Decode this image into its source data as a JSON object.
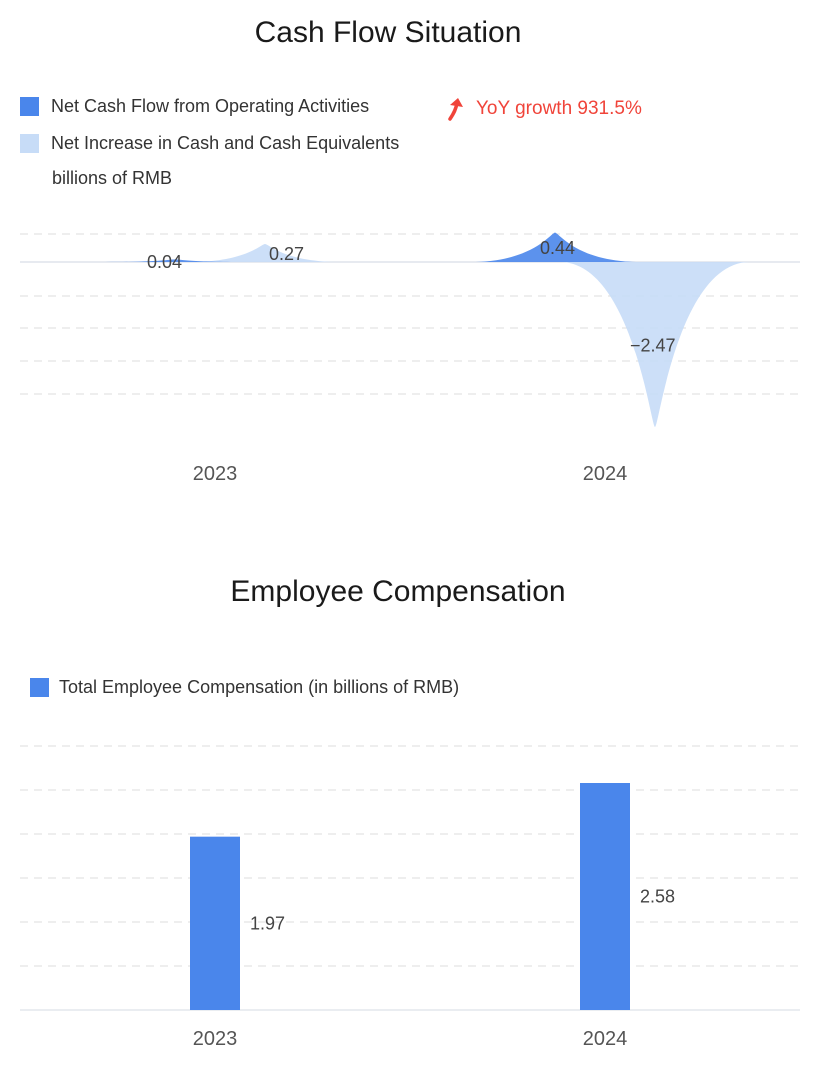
{
  "colors": {
    "primary": "#4a86eb",
    "secondary": "#c7dcf7",
    "accent_red": "#f0443a",
    "grid": "#dddddd"
  },
  "cash_flow": {
    "title": "Cash Flow Situation",
    "legend": [
      {
        "label": "Net Cash Flow from Operating Activities",
        "color": "#4a86eb"
      },
      {
        "label": "Net Increase in Cash and Cash Equivalents",
        "color": "#c7dcf7"
      }
    ],
    "unit_note": "billions of RMB",
    "yoy": {
      "icon": "arrow-up-icon",
      "text": "YoY growth 931.5%"
    }
  },
  "employee_comp": {
    "title": "Employee Compensation",
    "legend": [
      {
        "label": "Total Employee Compensation (in billions of RMB)",
        "color": "#4a86eb"
      }
    ]
  },
  "chart_data": [
    {
      "type": "area",
      "title": "Cash Flow Situation",
      "categories": [
        "2023",
        "2024"
      ],
      "series": [
        {
          "name": "Net Cash Flow from Operating Activities",
          "values": [
            0.04,
            0.44
          ],
          "labels": [
            "0.04",
            "0.44"
          ]
        },
        {
          "name": "Net Increase in Cash and Cash Equivalents",
          "values": [
            0.27,
            -2.47
          ],
          "labels": [
            "0.27",
            "−2.47"
          ]
        }
      ],
      "ylim": [
        -2.5,
        0.5
      ],
      "grid": true,
      "legend_position": "top-left"
    },
    {
      "type": "bar",
      "title": "Employee Compensation",
      "categories": [
        "2023",
        "2024"
      ],
      "series": [
        {
          "name": "Total Employee Compensation (in billions of RMB)",
          "values": [
            1.97,
            2.58
          ],
          "labels": [
            "1.97",
            "2.58"
          ]
        }
      ],
      "ylim": [
        0,
        3
      ],
      "grid": true,
      "legend_position": "top-left"
    }
  ]
}
